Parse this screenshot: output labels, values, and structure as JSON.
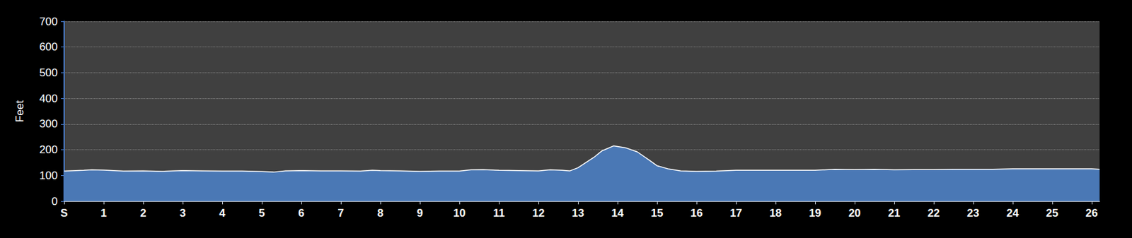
{
  "chart_data": {
    "type": "area",
    "y_label": "Feet",
    "color": "#4a78b5",
    "grid": true,
    "x": [
      0,
      0.5,
      0.7,
      1,
      1.5,
      2,
      2.5,
      3,
      3.5,
      4,
      4.5,
      5,
      5.3,
      5.6,
      6,
      6.5,
      7,
      7.5,
      7.8,
      8,
      8.5,
      9,
      9.5,
      10,
      10.3,
      10.6,
      11,
      11.5,
      12,
      12.3,
      12.6,
      12.8,
      13,
      13.2,
      13.4,
      13.6,
      13.9,
      14.2,
      14.5,
      14.8,
      15,
      15.3,
      15.6,
      16,
      16.5,
      17,
      17.5,
      18,
      18.5,
      19,
      19.5,
      20,
      20.5,
      21,
      21.5,
      22,
      22.5,
      23,
      23.5,
      24,
      24.5,
      25,
      25.5,
      26,
      26.2
    ],
    "values": [
      117,
      120,
      122,
      121,
      117,
      118,
      116,
      119,
      118,
      117,
      117,
      115,
      113,
      118,
      119,
      118,
      118,
      117,
      120,
      119,
      118,
      116,
      117,
      117,
      122,
      123,
      120,
      119,
      118,
      122,
      120,
      118,
      130,
      150,
      170,
      195,
      215,
      208,
      192,
      160,
      138,
      125,
      118,
      116,
      117,
      120,
      120,
      120,
      120,
      120,
      124,
      123,
      124,
      122,
      123,
      123,
      124,
      124,
      124,
      126,
      126,
      126,
      126,
      126,
      124
    ],
    "xlim": [
      0,
      26.2
    ],
    "xticks": [
      {
        "value": 0,
        "label": "S"
      },
      1,
      2,
      3,
      4,
      5,
      6,
      7,
      8,
      9,
      10,
      11,
      12,
      13,
      14,
      15,
      16,
      17,
      18,
      19,
      20,
      21,
      22,
      23,
      24,
      25,
      26
    ],
    "ylim": [
      0,
      700
    ],
    "yticks": [
      0,
      100,
      200,
      300,
      400,
      500,
      600,
      700
    ]
  }
}
